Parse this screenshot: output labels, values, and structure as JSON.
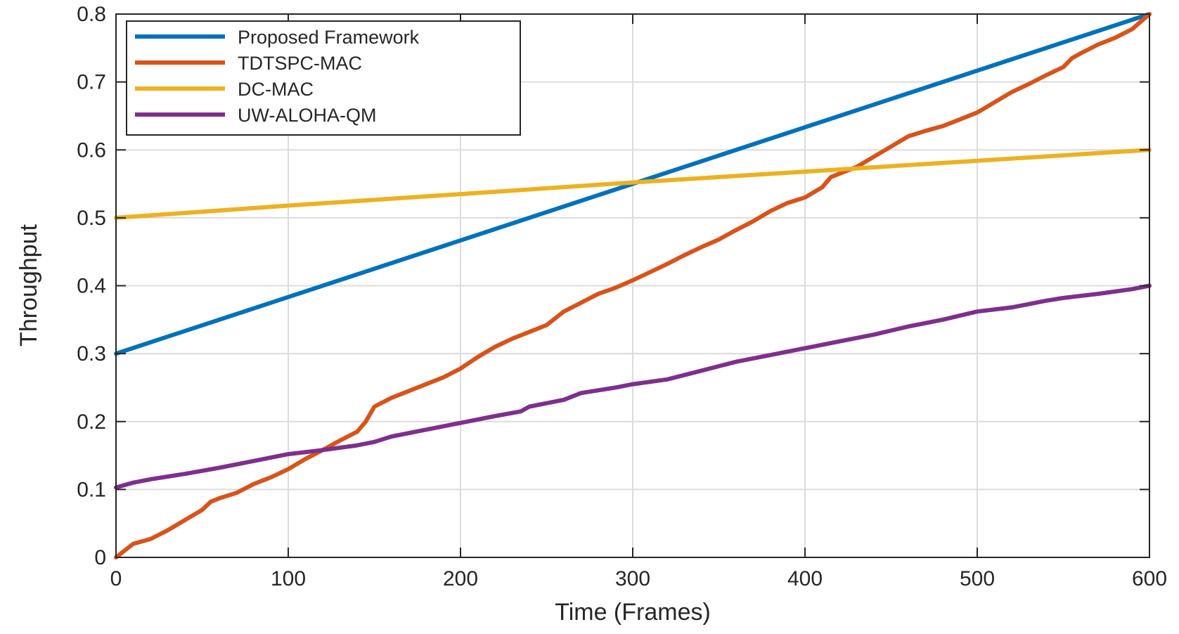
{
  "chart_data": {
    "type": "line",
    "xlabel": "Time (Frames)",
    "ylabel": "Throughput",
    "xlim": [
      0,
      600
    ],
    "ylim": [
      0,
      0.8
    ],
    "xticks": [
      0,
      100,
      200,
      300,
      400,
      500,
      600
    ],
    "yticks": [
      0,
      0.1,
      0.2,
      0.3,
      0.4,
      0.5,
      0.6,
      0.7,
      0.8
    ],
    "xtick_labels": [
      "0",
      "100",
      "200",
      "300",
      "400",
      "500",
      "600"
    ],
    "ytick_labels": [
      "0",
      "0.1",
      "0.2",
      "0.3",
      "0.4",
      "0.5",
      "0.6",
      "0.7",
      "0.8"
    ],
    "grid": true,
    "legend_position": "top-left",
    "series": [
      {
        "name": "Proposed Framework",
        "color": "#0072BD",
        "x": [
          0,
          600
        ],
        "y": [
          0.3,
          0.8
        ]
      },
      {
        "name": "TDTSPC-MAC",
        "color": "#D95319",
        "x": [
          0,
          5,
          10,
          20,
          30,
          40,
          50,
          55,
          60,
          70,
          80,
          90,
          100,
          110,
          120,
          130,
          140,
          145,
          150,
          160,
          170,
          180,
          190,
          200,
          210,
          220,
          230,
          240,
          250,
          260,
          270,
          280,
          290,
          300,
          310,
          320,
          330,
          340,
          350,
          360,
          370,
          380,
          390,
          400,
          410,
          415,
          420,
          430,
          440,
          450,
          460,
          470,
          480,
          490,
          500,
          510,
          520,
          530,
          540,
          550,
          555,
          560,
          570,
          580,
          590,
          600
        ],
        "y": [
          0.0,
          0.01,
          0.02,
          0.027,
          0.04,
          0.055,
          0.07,
          0.082,
          0.087,
          0.095,
          0.108,
          0.118,
          0.13,
          0.145,
          0.158,
          0.172,
          0.185,
          0.2,
          0.222,
          0.235,
          0.245,
          0.255,
          0.265,
          0.278,
          0.295,
          0.31,
          0.322,
          0.332,
          0.342,
          0.362,
          0.375,
          0.388,
          0.397,
          0.408,
          0.42,
          0.432,
          0.445,
          0.457,
          0.468,
          0.482,
          0.495,
          0.51,
          0.522,
          0.53,
          0.545,
          0.56,
          0.565,
          0.575,
          0.59,
          0.605,
          0.62,
          0.628,
          0.635,
          0.645,
          0.655,
          0.67,
          0.685,
          0.697,
          0.71,
          0.722,
          0.735,
          0.742,
          0.755,
          0.765,
          0.778,
          0.8
        ]
      },
      {
        "name": "DC-MAC",
        "color": "#EDB120",
        "x": [
          0,
          100,
          200,
          300,
          400,
          500,
          600
        ],
        "y": [
          0.5,
          0.518,
          0.535,
          0.552,
          0.568,
          0.584,
          0.6
        ]
      },
      {
        "name": "UW-ALOHA-QM",
        "color": "#7E2F8E",
        "x": [
          0,
          10,
          20,
          40,
          60,
          80,
          100,
          120,
          140,
          150,
          160,
          180,
          200,
          220,
          235,
          240,
          260,
          270,
          290,
          300,
          320,
          340,
          360,
          380,
          400,
          420,
          440,
          460,
          480,
          500,
          520,
          540,
          550,
          570,
          590,
          600
        ],
        "y": [
          0.103,
          0.11,
          0.115,
          0.123,
          0.132,
          0.142,
          0.152,
          0.158,
          0.165,
          0.17,
          0.178,
          0.188,
          0.198,
          0.208,
          0.215,
          0.222,
          0.232,
          0.242,
          0.25,
          0.255,
          0.262,
          0.275,
          0.288,
          0.298,
          0.308,
          0.318,
          0.328,
          0.34,
          0.35,
          0.362,
          0.368,
          0.378,
          0.382,
          0.388,
          0.395,
          0.4
        ]
      }
    ]
  }
}
